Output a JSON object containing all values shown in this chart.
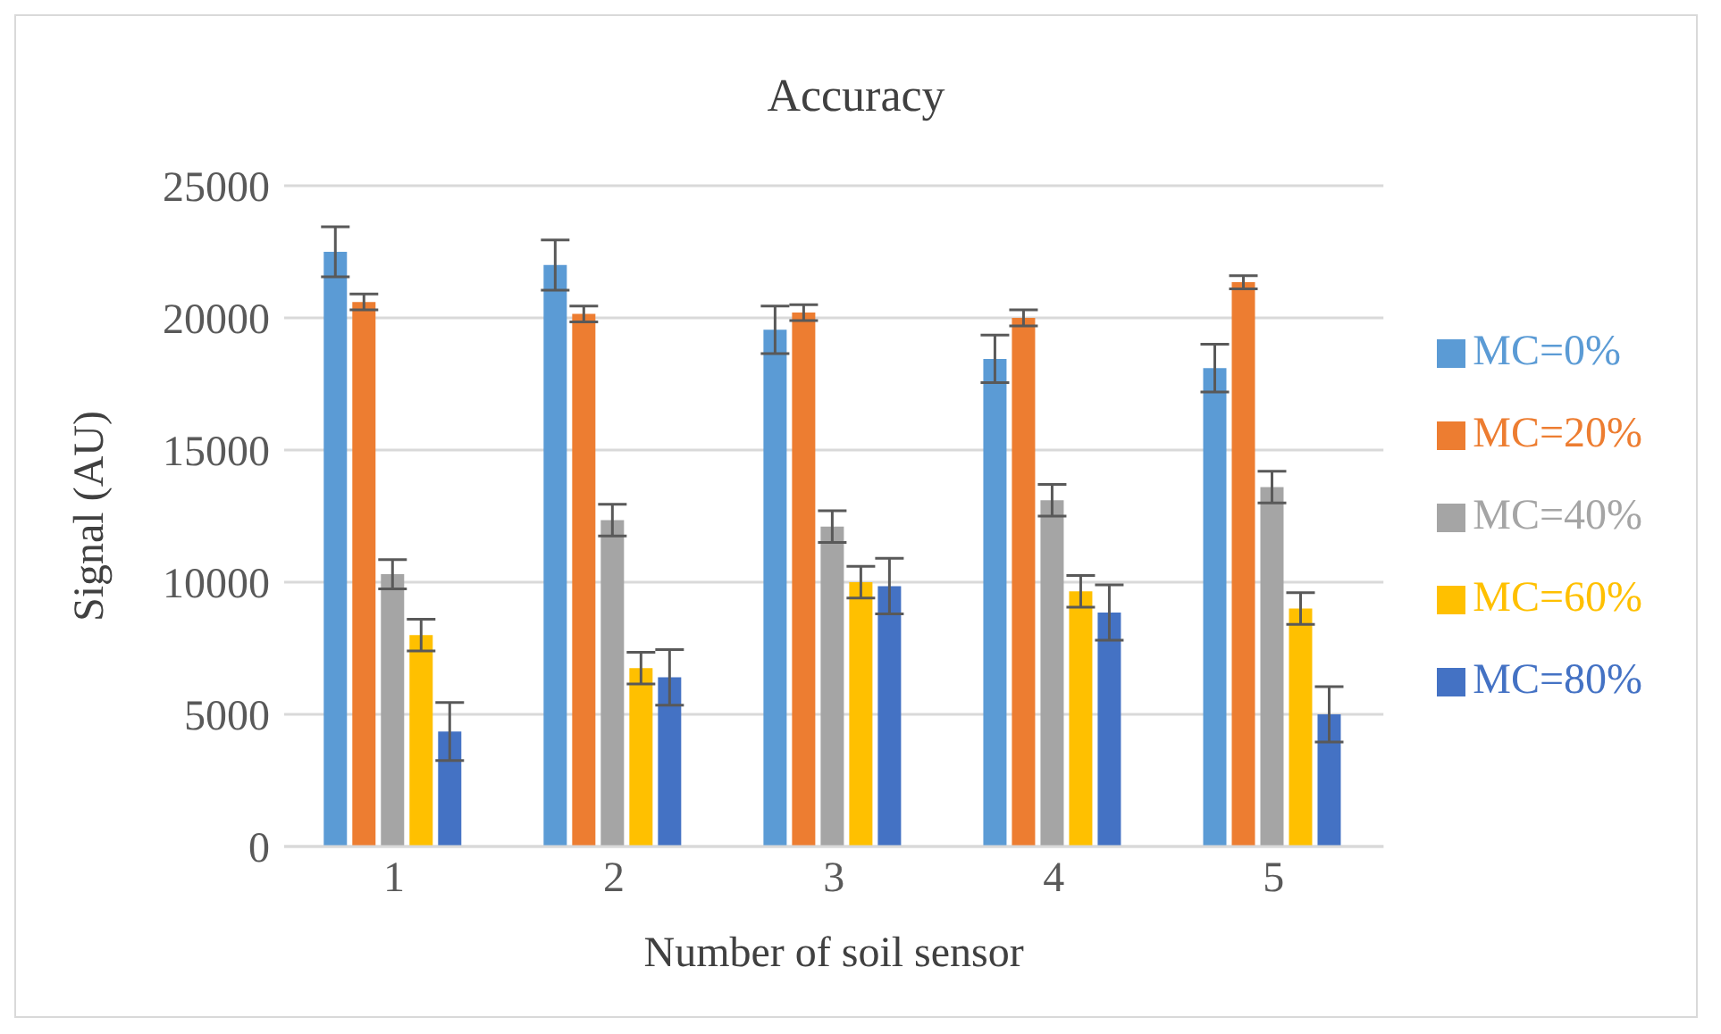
{
  "chart_data": {
    "type": "bar",
    "title": "Accuracy",
    "xlabel": "Number of soil sensor",
    "ylabel": "Signal (AU)",
    "categories": [
      "1",
      "2",
      "3",
      "4",
      "5"
    ],
    "series": [
      {
        "name": "MC=0%",
        "color": "#5b9bd5",
        "values": [
          22500,
          22000,
          19550,
          18450,
          18100
        ],
        "errors": [
          950,
          950,
          900,
          900,
          900
        ]
      },
      {
        "name": "MC=20%",
        "color": "#ed7d31",
        "values": [
          20600,
          20150,
          20200,
          20000,
          21350
        ],
        "errors": [
          300,
          300,
          300,
          300,
          250
        ]
      },
      {
        "name": "MC=40%",
        "color": "#a5a5a5",
        "values": [
          10300,
          12350,
          12100,
          13100,
          13600
        ],
        "errors": [
          550,
          600,
          600,
          600,
          600
        ]
      },
      {
        "name": "MC=60%",
        "color": "#ffc000",
        "values": [
          8000,
          6750,
          10000,
          9650,
          9000
        ],
        "errors": [
          600,
          600,
          600,
          600,
          600
        ]
      },
      {
        "name": "MC=80%",
        "color": "#4472c4",
        "values": [
          4350,
          6400,
          9850,
          8850,
          5000
        ],
        "errors": [
          1100,
          1050,
          1050,
          1050,
          1050
        ]
      }
    ],
    "ylim": [
      0,
      25000
    ],
    "yticks": [
      0,
      5000,
      10000,
      15000,
      20000,
      25000
    ],
    "grid": "y",
    "legend": "right"
  }
}
